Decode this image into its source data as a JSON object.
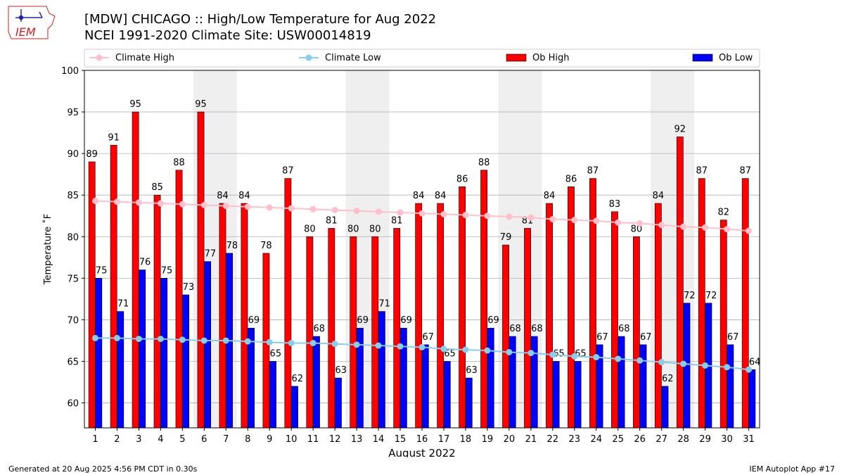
{
  "header": {
    "title_line1": "[MDW] CHICAGO :: High/Low Temperature for Aug 2022",
    "title_line2": "NCEI 1991-2020 Climate Site: USW00014819"
  },
  "logo": {
    "text": "IEM",
    "color": "#cc2222"
  },
  "footer": {
    "left": "Generated at 20 Aug 2025 4:56 PM CDT in 0.30s",
    "right": "IEM Autoplot App #17"
  },
  "chart_data": {
    "type": "bar",
    "xlabel": "August 2022",
    "ylabel": "Temperature ˚F",
    "ylim": [
      57,
      100
    ],
    "yticks": [
      60,
      65,
      70,
      75,
      80,
      85,
      90,
      95,
      100
    ],
    "grid": "horizontal",
    "legend_position": "top",
    "weekend_shading": [
      [
        6,
        7
      ],
      [
        13,
        14
      ],
      [
        20,
        21
      ],
      [
        27,
        28
      ]
    ],
    "categories": [
      "1",
      "2",
      "3",
      "4",
      "5",
      "6",
      "7",
      "8",
      "9",
      "10",
      "11",
      "12",
      "13",
      "14",
      "15",
      "16",
      "17",
      "18",
      "19",
      "20",
      "21",
      "22",
      "23",
      "24",
      "25",
      "26",
      "27",
      "28",
      "29",
      "30",
      "31"
    ],
    "series": [
      {
        "name": "Climate High",
        "kind": "line",
        "color": "#ffc0cb",
        "values": [
          84.3,
          84.2,
          84.1,
          84.0,
          83.9,
          83.8,
          83.7,
          83.6,
          83.5,
          83.4,
          83.3,
          83.2,
          83.1,
          83.0,
          82.9,
          82.8,
          82.7,
          82.6,
          82.5,
          82.4,
          82.3,
          82.1,
          82.0,
          81.9,
          81.7,
          81.6,
          81.4,
          81.2,
          81.1,
          80.9,
          80.7
        ]
      },
      {
        "name": "Climate Low",
        "kind": "line",
        "color": "#87ceeb",
        "values": [
          67.8,
          67.8,
          67.7,
          67.7,
          67.6,
          67.5,
          67.5,
          67.4,
          67.3,
          67.2,
          67.2,
          67.1,
          67.0,
          66.9,
          66.8,
          66.7,
          66.5,
          66.4,
          66.3,
          66.1,
          66.0,
          65.8,
          65.6,
          65.5,
          65.3,
          65.1,
          64.9,
          64.7,
          64.5,
          64.3,
          64.0
        ]
      },
      {
        "name": "Ob High",
        "kind": "bar",
        "color": "#ff0000",
        "values": [
          89,
          91,
          95,
          85,
          88,
          95,
          84,
          84,
          78,
          87,
          80,
          81,
          80,
          80,
          81,
          84,
          84,
          86,
          88,
          79,
          81,
          84,
          86,
          87,
          83,
          80,
          84,
          92,
          87,
          82,
          87
        ]
      },
      {
        "name": "Ob Low",
        "kind": "bar",
        "color": "#0000ff",
        "values": [
          75,
          71,
          76,
          75,
          73,
          77,
          78,
          69,
          65,
          62,
          68,
          63,
          69,
          71,
          69,
          67,
          65,
          63,
          69,
          68,
          68,
          65,
          65,
          67,
          68,
          67,
          62,
          72,
          72,
          67,
          64
        ]
      }
    ]
  }
}
